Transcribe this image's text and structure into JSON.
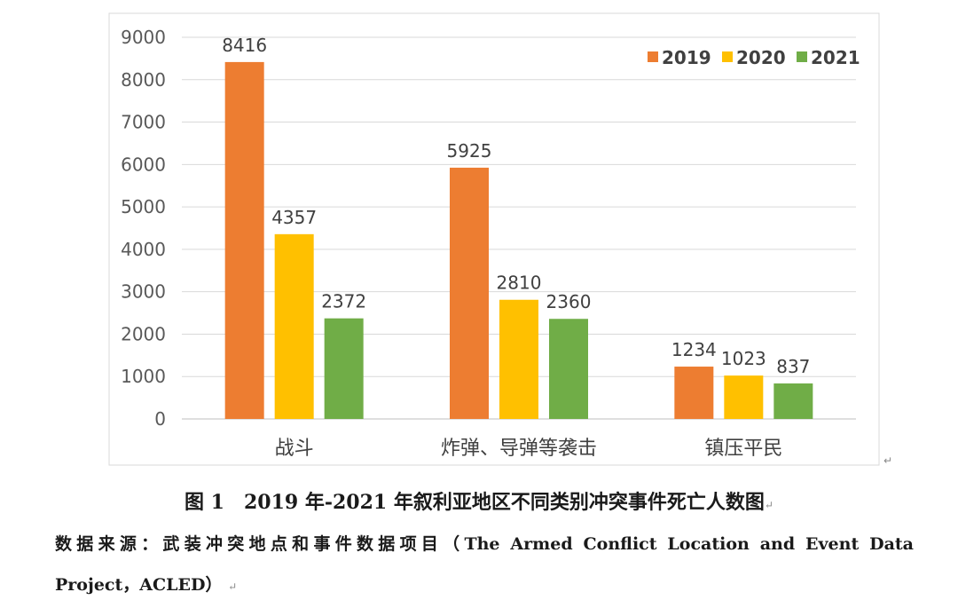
{
  "chart_data": {
    "type": "bar",
    "categories": [
      "战斗",
      "炸弹、导弹等袭击",
      "镇压平民"
    ],
    "series": [
      {
        "name": "2019",
        "color": "#ED7D31",
        "values": [
          8416,
          5925,
          1234
        ]
      },
      {
        "name": "2020",
        "color": "#FFC000",
        "values": [
          4357,
          2810,
          1023
        ]
      },
      {
        "name": "2021",
        "color": "#70AD47",
        "values": [
          2372,
          2360,
          837
        ]
      }
    ],
    "ylim": [
      0,
      9000
    ],
    "yticks": [
      "0",
      "1000",
      "2000",
      "3000",
      "4000",
      "5000",
      "6000",
      "7000",
      "8000",
      "9000"
    ],
    "legend_position": "top-right",
    "grid": true
  },
  "caption": "图 1　2019 年-2021 年叙利亚地区不同类别冲突事件死亡人数图",
  "source_line1": "数据来源：武装冲突地点和事件数据项目（The Armed Conflict Location and Event Data",
  "source_line2": "Project，ACLED）",
  "return_mark": "↵"
}
